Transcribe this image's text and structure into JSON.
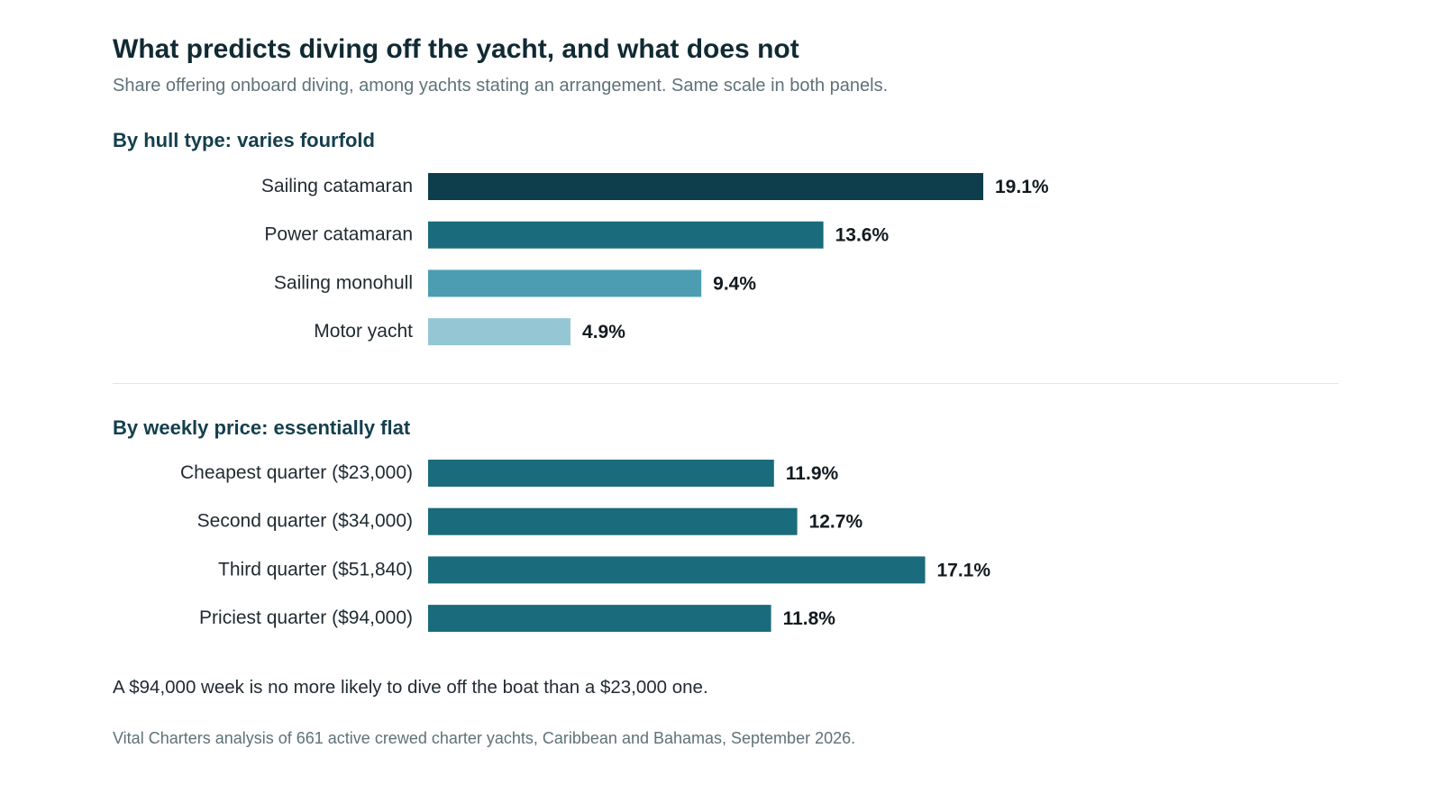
{
  "header": {
    "title": "What predicts diving off the yacht, and what does not",
    "subtitle": "Share offering onboard diving, among yachts stating an arrangement. Same scale in both panels."
  },
  "footer": {
    "note": "A $94,000 week is no more likely to dive off the boat than a $23,000 one.",
    "source": "Vital Charters analysis of 661 active crewed charter yachts, Caribbean and Bahamas, September 2026."
  },
  "chart_data": [
    {
      "type": "bar",
      "orientation": "horizontal",
      "title": "By hull type: varies fourfold",
      "categories": [
        "Sailing catamaran",
        "Power catamaran",
        "Sailing monohull",
        "Motor yacht"
      ],
      "values": [
        19.1,
        13.6,
        9.4,
        4.9
      ],
      "value_labels": [
        "19.1%",
        "13.6%",
        "9.4%",
        "4.9%"
      ],
      "colors": [
        "#0e3d4b",
        "#1a6b7b",
        "#4c9db2",
        "#95c6d4"
      ],
      "xlim": [
        0,
        19.1
      ],
      "grid": false
    },
    {
      "type": "bar",
      "orientation": "horizontal",
      "title": "By weekly price: essentially flat",
      "categories": [
        "Cheapest quarter ($23,000)",
        "Second quarter ($34,000)",
        "Third quarter ($51,840)",
        "Priciest quarter ($94,000)"
      ],
      "values": [
        11.9,
        12.7,
        17.1,
        11.8
      ],
      "value_labels": [
        "11.9%",
        "12.7%",
        "17.1%",
        "11.8%"
      ],
      "colors": [
        "#1a6b7b",
        "#1a6b7b",
        "#1a6b7b",
        "#1a6b7b"
      ],
      "xlim": [
        0,
        19.1
      ],
      "grid": false
    }
  ]
}
